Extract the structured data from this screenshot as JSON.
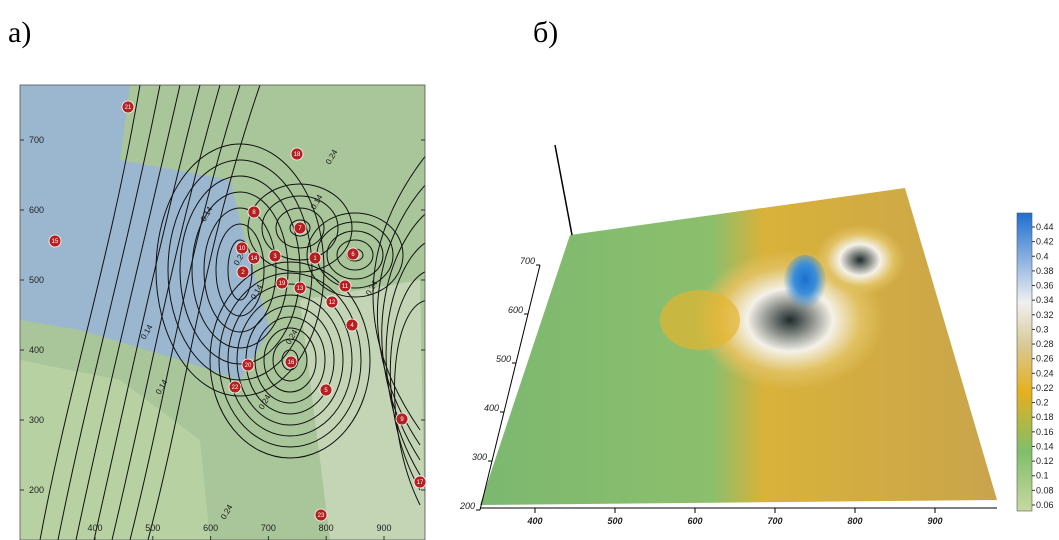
{
  "panels": [
    {
      "label": "а)",
      "xticks": [
        400,
        500,
        600,
        700,
        800,
        900
      ],
      "yticks": [
        200,
        300,
        400,
        500,
        600,
        700
      ],
      "contour_labels": [
        0.14,
        0.24,
        0.14,
        0.24,
        0.24,
        0.14,
        0.24,
        0.24,
        0.14,
        0.14,
        0.24
      ],
      "stations": [
        21,
        18,
        8,
        7,
        15,
        10,
        14,
        3,
        2,
        1,
        6,
        13,
        19,
        11,
        12,
        4,
        16,
        20,
        5,
        22,
        9,
        17,
        23
      ]
    },
    {
      "label": "б)",
      "xticks": [
        400,
        500,
        600,
        700,
        800,
        900
      ],
      "yticks": [
        200,
        300,
        400,
        500,
        600,
        700
      ],
      "colorbar_ticks": [
        0.06,
        0.08,
        0.1,
        0.12,
        0.14,
        0.16,
        0.18,
        0.2,
        0.22,
        0.24,
        0.26,
        0.28,
        0.3,
        0.32,
        0.34,
        0.36,
        0.38,
        0.4,
        0.42,
        0.44
      ]
    }
  ]
}
